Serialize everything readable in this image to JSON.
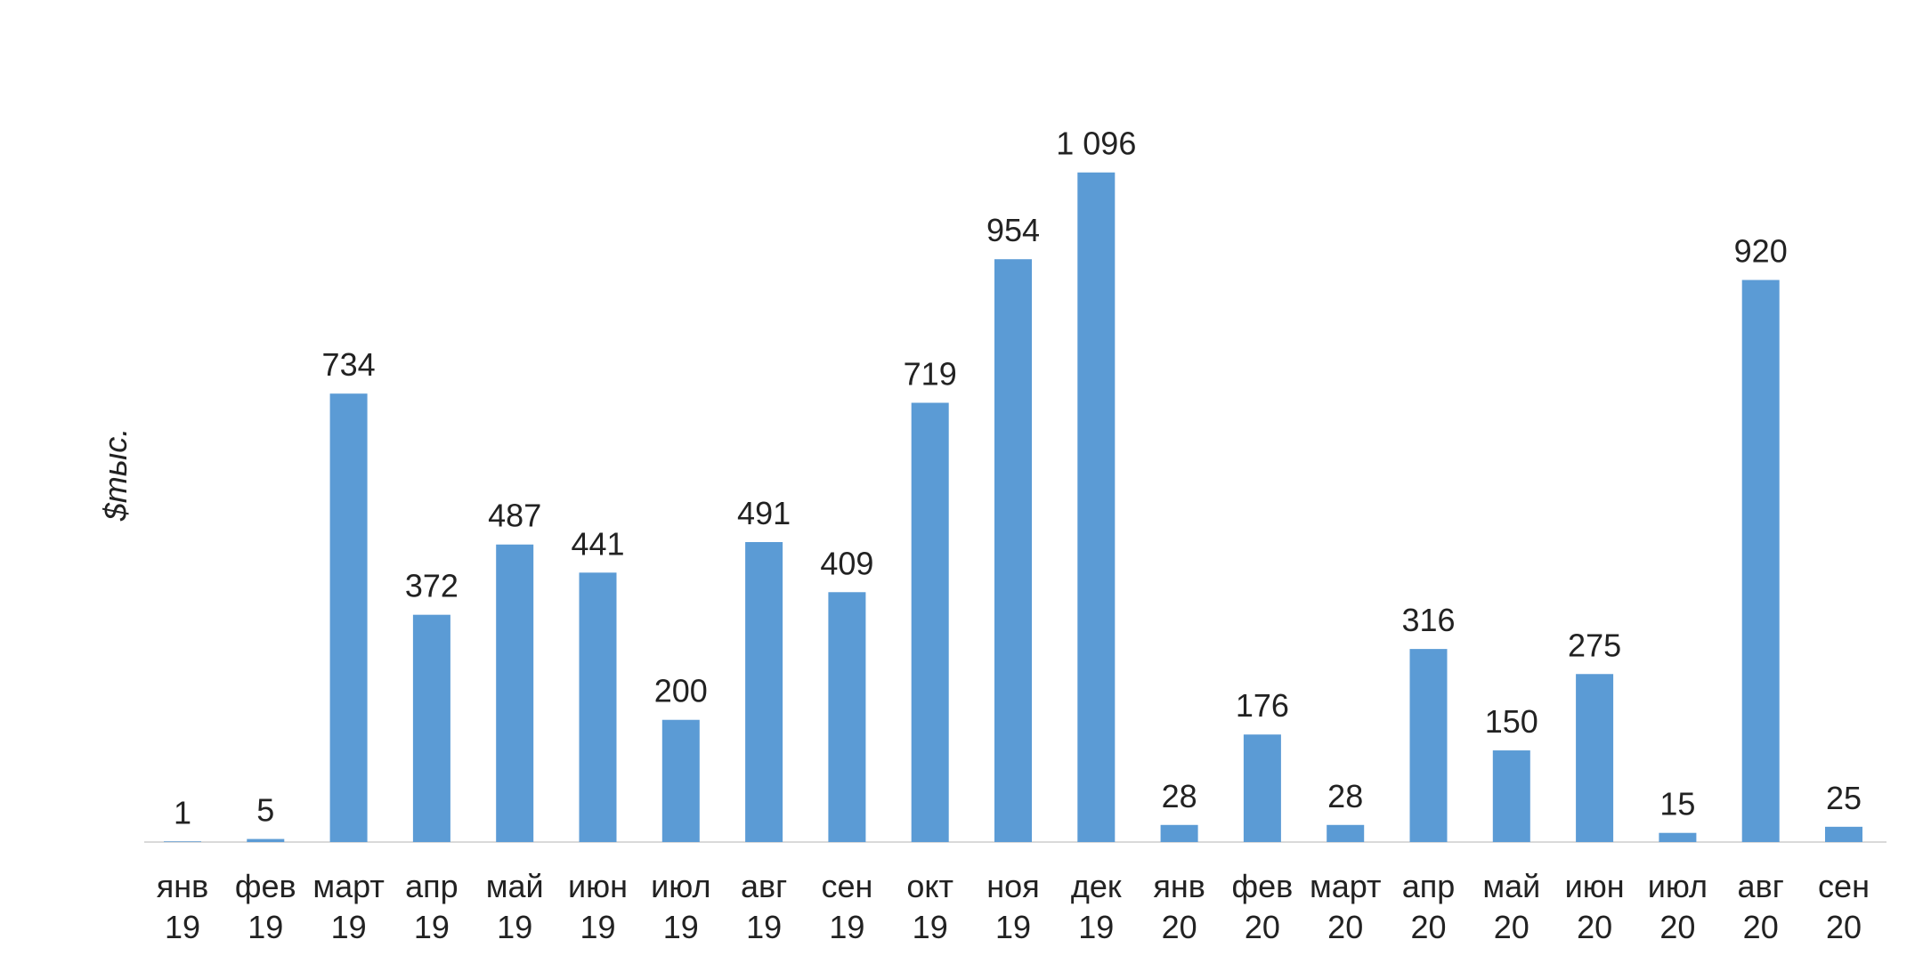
{
  "chart_data": {
    "type": "bar",
    "y_label": "$тыс.",
    "categories": [
      [
        "янв",
        "19"
      ],
      [
        "фев",
        "19"
      ],
      [
        "март",
        "19"
      ],
      [
        "апр",
        "19"
      ],
      [
        "май",
        "19"
      ],
      [
        "июн",
        "19"
      ],
      [
        "июл",
        "19"
      ],
      [
        "авг",
        "19"
      ],
      [
        "сен",
        "19"
      ],
      [
        "окт",
        "19"
      ],
      [
        "ноя",
        "19"
      ],
      [
        "дек",
        "19"
      ],
      [
        "янв",
        "20"
      ],
      [
        "фев",
        "20"
      ],
      [
        "март",
        "20"
      ],
      [
        "апр",
        "20"
      ],
      [
        "май",
        "20"
      ],
      [
        "июн",
        "20"
      ],
      [
        "июл",
        "20"
      ],
      [
        "авг",
        "20"
      ],
      [
        "сен",
        "20"
      ]
    ],
    "values": [
      1,
      5,
      734,
      372,
      487,
      441,
      200,
      491,
      409,
      719,
      954,
      1096,
      28,
      176,
      28,
      316,
      150,
      275,
      15,
      920,
      25
    ],
    "value_labels": [
      "1",
      "5",
      "734",
      "372",
      "487",
      "441",
      "200",
      "491",
      "409",
      "719",
      "954",
      "1 096",
      "28",
      "176",
      "28",
      "316",
      "150",
      "275",
      "15",
      "920",
      "25"
    ],
    "color": "#5b9bd5",
    "ylim": [
      0,
      1100
    ]
  }
}
